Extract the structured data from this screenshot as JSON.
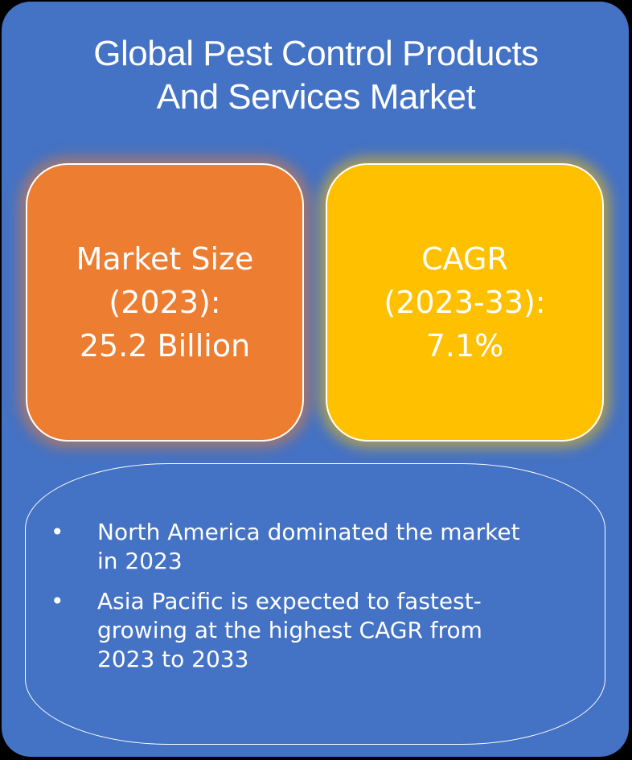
{
  "title": {
    "line1": "Global Pest Control Products",
    "line2": "And Services Market"
  },
  "market_size": {
    "line1": "Market Size",
    "line2": "(2023):",
    "line3": "25.2 Billion"
  },
  "cagr": {
    "line1": "CAGR",
    "line2": "(2023-33):",
    "line3": "7.1%"
  },
  "highlights": {
    "bullet": "•",
    "items": [
      "North America dominated the market in 2023",
      "Asia Pacific is expected to fastest-growing at the highest CAGR from 2023 to 2033"
    ]
  },
  "colors": {
    "background": "#4472c4",
    "market_size_box": "#ed7d31",
    "cagr_box": "#ffc000",
    "text": "#ffffff"
  }
}
